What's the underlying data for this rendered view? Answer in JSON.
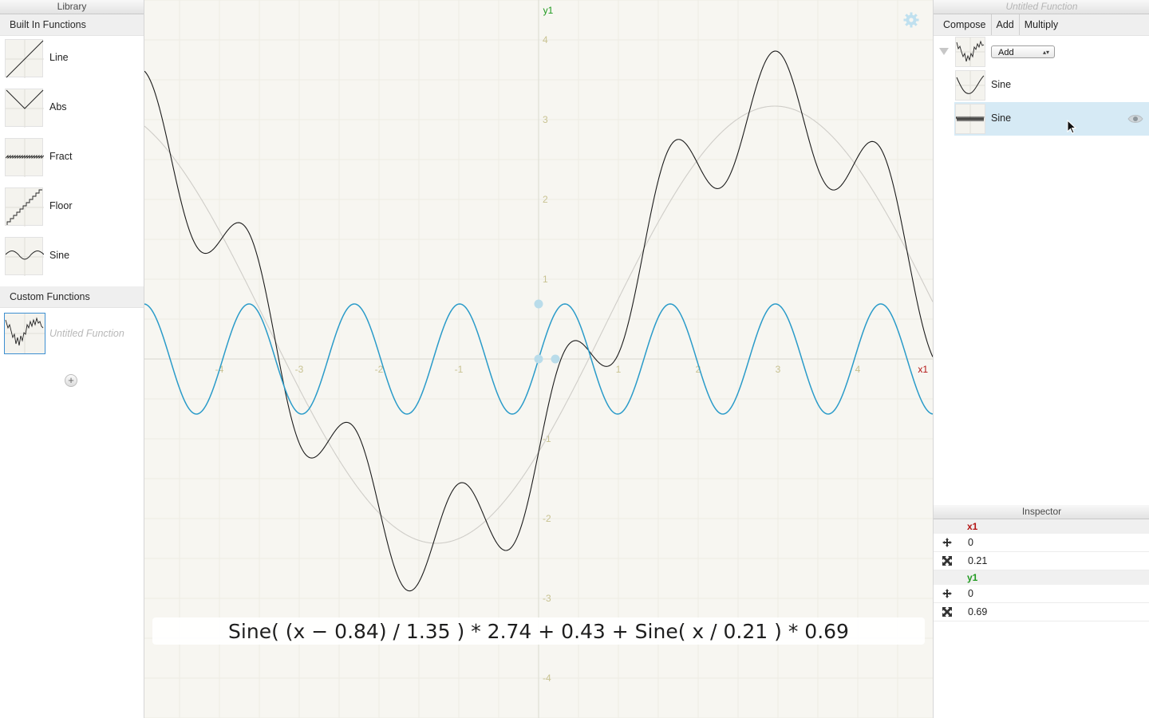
{
  "library": {
    "title": "Library",
    "builtin_header": "Built In Functions",
    "builtin": [
      {
        "label": "Line",
        "icon": "line-graph-icon"
      },
      {
        "label": "Abs",
        "icon": "abs-graph-icon"
      },
      {
        "label": "Fract",
        "icon": "fract-graph-icon"
      },
      {
        "label": "Floor",
        "icon": "floor-graph-icon"
      },
      {
        "label": "Sine",
        "icon": "sine-graph-icon"
      }
    ],
    "custom_header": "Custom Functions",
    "custom": [
      {
        "label": "Untitled Function"
      }
    ],
    "add_label": "+"
  },
  "graph": {
    "x_axis_label": "x1",
    "y_axis_label": "y1",
    "x_ticks": [
      "-4",
      "-3",
      "-2",
      "-1",
      "1",
      "2",
      "3",
      "4"
    ],
    "y_ticks": [
      "4",
      "3",
      "2",
      "1",
      "-1",
      "-2",
      "-3",
      "-4"
    ],
    "formula": "Sine( (x − 0.84) / 1.35 ) * 2.74 + 0.43 + Sine( x / 0.21 ) * 0.69",
    "colors": {
      "sum": "#1c1c1c",
      "component_a": "#cfcdc8",
      "selected": "#2a9bc9",
      "x_label": "#b31414",
      "y_label": "#1f9a1f",
      "tick": "#c8c291"
    },
    "gear_icon": "gear-icon"
  },
  "chart_data": {
    "type": "line",
    "xlim": [
      -4.94,
      4.94
    ],
    "ylim": [
      -4.5,
      4.5
    ],
    "grid": true,
    "series": [
      {
        "formula": "Sine( (x − 0.84) / 1.35 ) * 2.74 + 0.43 + Sine( x / 0.21 ) * 0.69",
        "color": "#1c1c1c"
      },
      {
        "formula": "sin((x - 0.84) / 1.35) * 2.74 + 0.43",
        "color": "#cfcdc8"
      },
      {
        "formula": "sin(x / 0.21) * 0.69",
        "color": "#2a9bc9"
      }
    ]
  },
  "composer": {
    "title": "Untitled Function",
    "tabs": [
      "Compose",
      "Add",
      "Multiply"
    ],
    "operation": "Add",
    "children": [
      {
        "label": "Sine"
      },
      {
        "label": "Sine"
      }
    ]
  },
  "inspector": {
    "title": "Inspector",
    "x_label": "x1",
    "x_offset": "0",
    "x_scale": "0.21",
    "y_label": "y1",
    "y_offset": "0",
    "y_scale": "0.69"
  }
}
